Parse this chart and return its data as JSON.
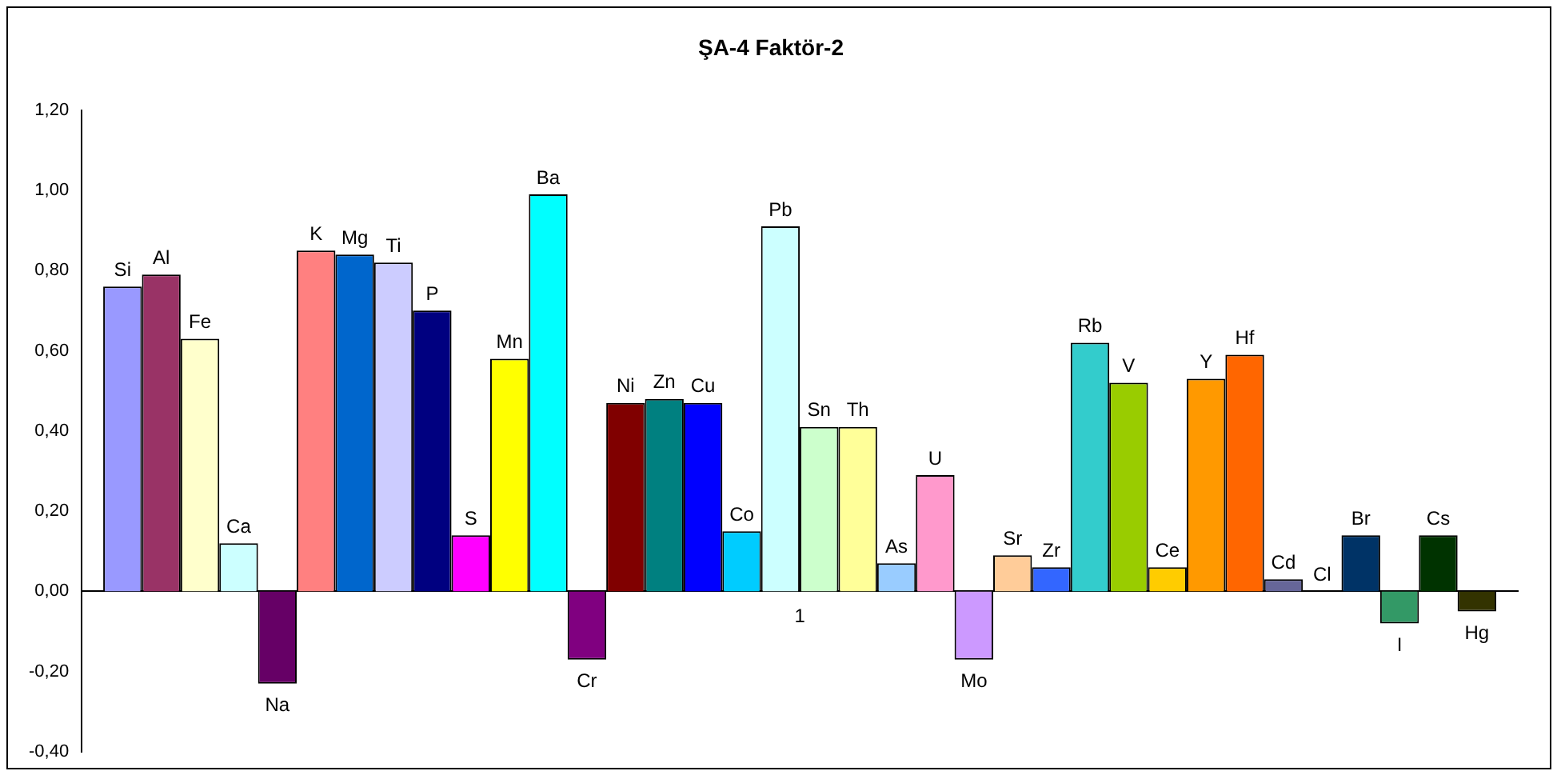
{
  "chart_data": {
    "type": "bar",
    "title": "ŞA-4 Faktör-2",
    "categories": [
      "1"
    ],
    "ylim": [
      -0.4,
      1.2
    ],
    "yticks": [
      {
        "value": -0.4,
        "label": "-0,40"
      },
      {
        "value": -0.2,
        "label": "-0,20"
      },
      {
        "value": 0,
        "label": "0,00"
      },
      {
        "value": 0.2,
        "label": "0,20"
      },
      {
        "value": 0.4,
        "label": "0,40"
      },
      {
        "value": 0.6,
        "label": "0,60"
      },
      {
        "value": 0.8,
        "label": "0,80"
      },
      {
        "value": 1,
        "label": "1,00"
      },
      {
        "value": 1.2,
        "label": "1,20"
      }
    ],
    "legend": false,
    "series": [
      {
        "name": "Si",
        "color": "#9999ff",
        "values": [
          0.76
        ]
      },
      {
        "name": "Al",
        "color": "#993366",
        "values": [
          0.79
        ]
      },
      {
        "name": "Fe",
        "color": "#ffffcc",
        "values": [
          0.63
        ]
      },
      {
        "name": "Ca",
        "color": "#ccffff",
        "values": [
          0.12
        ]
      },
      {
        "name": "Na",
        "color": "#660066",
        "values": [
          -0.23
        ]
      },
      {
        "name": "K",
        "color": "#ff8080",
        "values": [
          0.85
        ]
      },
      {
        "name": "Mg",
        "color": "#0066cc",
        "values": [
          0.84
        ]
      },
      {
        "name": "Ti",
        "color": "#ccccff",
        "values": [
          0.82
        ]
      },
      {
        "name": "P",
        "color": "#000080",
        "values": [
          0.7
        ]
      },
      {
        "name": "S",
        "color": "#ff00ff",
        "values": [
          0.14
        ]
      },
      {
        "name": "Mn",
        "color": "#ffff00",
        "values": [
          0.58
        ]
      },
      {
        "name": "Ba",
        "color": "#00ffff",
        "values": [
          0.99
        ]
      },
      {
        "name": "Cr",
        "color": "#800080",
        "values": [
          -0.17
        ]
      },
      {
        "name": "Ni",
        "color": "#800000",
        "values": [
          0.47
        ]
      },
      {
        "name": "Zn",
        "color": "#008080",
        "values": [
          0.48
        ]
      },
      {
        "name": "Cu",
        "color": "#0000ff",
        "values": [
          0.47
        ]
      },
      {
        "name": "Co",
        "color": "#00ccff",
        "values": [
          0.15
        ]
      },
      {
        "name": "Pb",
        "color": "#ccffff",
        "values": [
          0.91
        ]
      },
      {
        "name": "Sn",
        "color": "#ccffcc",
        "values": [
          0.41
        ]
      },
      {
        "name": "Th",
        "color": "#ffff99",
        "values": [
          0.41
        ]
      },
      {
        "name": "As",
        "color": "#99ccff",
        "values": [
          0.07
        ]
      },
      {
        "name": "U",
        "color": "#ff99cc",
        "values": [
          0.29
        ]
      },
      {
        "name": "Mo",
        "color": "#cc99ff",
        "values": [
          -0.17
        ]
      },
      {
        "name": "Sr",
        "color": "#ffcc99",
        "values": [
          0.09
        ]
      },
      {
        "name": "Zr",
        "color": "#3366ff",
        "values": [
          0.06
        ]
      },
      {
        "name": "Rb",
        "color": "#33cccc",
        "values": [
          0.62
        ]
      },
      {
        "name": "V",
        "color": "#99cc00",
        "values": [
          0.52
        ]
      },
      {
        "name": "Ce",
        "color": "#ffcc00",
        "values": [
          0.06
        ]
      },
      {
        "name": "Y",
        "color": "#ff9900",
        "values": [
          0.53
        ]
      },
      {
        "name": "Hf",
        "color": "#ff6600",
        "values": [
          0.59
        ]
      },
      {
        "name": "Cd",
        "color": "#666699",
        "values": [
          0.03
        ]
      },
      {
        "name": "Cl",
        "values": [
          0
        ]
      },
      {
        "name": "Br",
        "color": "#003366",
        "values": [
          0.14
        ]
      },
      {
        "name": "I",
        "color": "#339966",
        "values": [
          -0.08
        ]
      },
      {
        "name": "Cs",
        "color": "#003300",
        "values": [
          0.14
        ]
      },
      {
        "name": "Hg",
        "color": "#333300",
        "values": [
          -0.05
        ]
      }
    ]
  }
}
